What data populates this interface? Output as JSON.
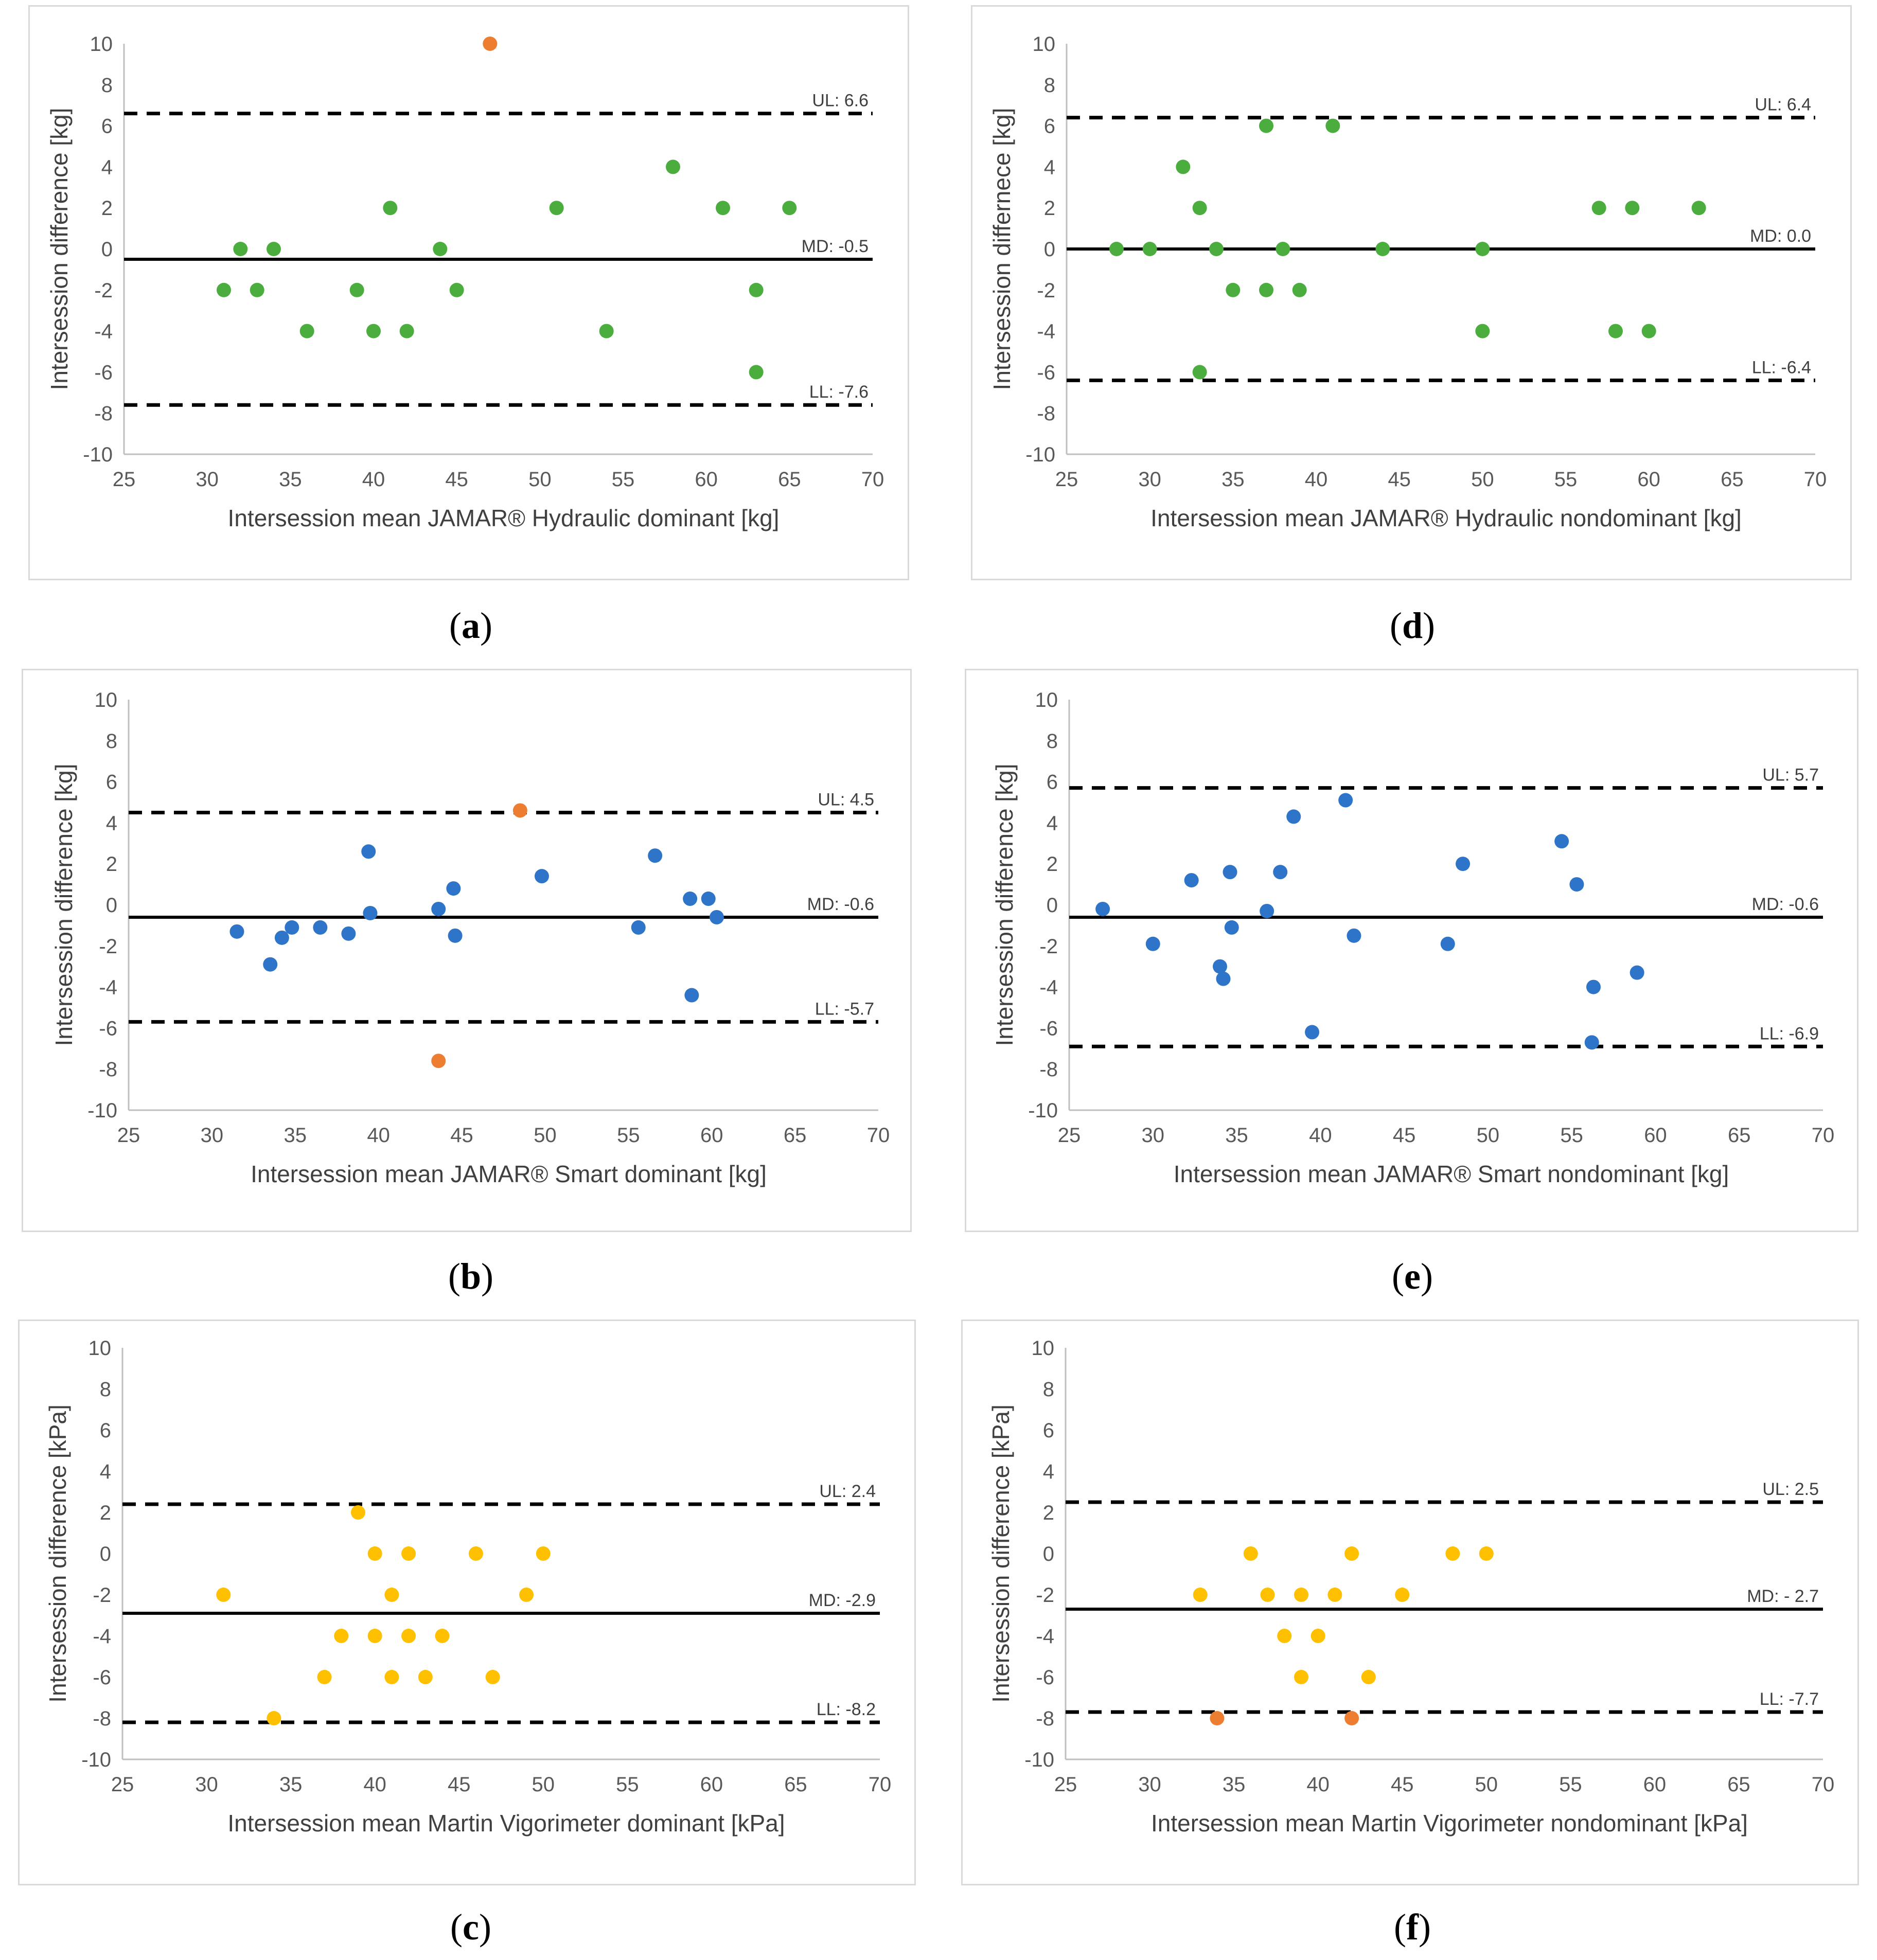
{
  "colors": {
    "green": "#4cad3f",
    "blue": "#2e75c9",
    "orange": "#ed7d31",
    "yellow": "#ffc000",
    "line": "#000000",
    "axis": "#bfbfbf"
  },
  "chart_data": [
    {
      "id": "a",
      "label": "a",
      "type": "scatter",
      "xlabel": "Intersession mean JAMAR® Hydraulic dominant [kg]",
      "ylabel": "Intersession difference [kg]",
      "xlim": [
        25,
        70
      ],
      "ylim": [
        -10,
        10
      ],
      "xticks": [
        25,
        30,
        35,
        40,
        45,
        50,
        55,
        60,
        65,
        70
      ],
      "yticks": [
        -10,
        -8,
        -6,
        -4,
        -2,
        0,
        2,
        4,
        6,
        8,
        10
      ],
      "lines": [
        {
          "kind": "upper",
          "value": 6.6,
          "label": "UL: 6.6"
        },
        {
          "kind": "mean",
          "value": -0.5,
          "label": "MD: -0.5"
        },
        {
          "kind": "lower",
          "value": -7.6,
          "label": "LL: -7.6"
        }
      ],
      "points": [
        {
          "x": 31,
          "y": -2,
          "c": "green"
        },
        {
          "x": 32,
          "y": 0,
          "c": "green"
        },
        {
          "x": 33,
          "y": -2,
          "c": "green"
        },
        {
          "x": 34,
          "y": 0,
          "c": "green"
        },
        {
          "x": 36,
          "y": -4,
          "c": "green"
        },
        {
          "x": 39,
          "y": -2,
          "c": "green"
        },
        {
          "x": 40,
          "y": -4,
          "c": "green"
        },
        {
          "x": 41,
          "y": 2,
          "c": "green"
        },
        {
          "x": 42,
          "y": -4,
          "c": "green"
        },
        {
          "x": 44,
          "y": 0,
          "c": "green"
        },
        {
          "x": 45,
          "y": -2,
          "c": "green"
        },
        {
          "x": 47,
          "y": 10,
          "c": "orange"
        },
        {
          "x": 51,
          "y": 2,
          "c": "green"
        },
        {
          "x": 54,
          "y": -4,
          "c": "green"
        },
        {
          "x": 58,
          "y": 4,
          "c": "green"
        },
        {
          "x": 61,
          "y": 2,
          "c": "green"
        },
        {
          "x": 63,
          "y": -2,
          "c": "green"
        },
        {
          "x": 63,
          "y": -6,
          "c": "green"
        },
        {
          "x": 65,
          "y": 2,
          "c": "green"
        }
      ]
    },
    {
      "id": "d",
      "label": "d",
      "type": "scatter",
      "xlabel": "Intersession mean JAMAR® Hydraulic nondominant [kg]",
      "ylabel": "Intersession differnece [kg]",
      "xlim": [
        25,
        70
      ],
      "ylim": [
        -10,
        10
      ],
      "xticks": [
        25,
        30,
        35,
        40,
        45,
        50,
        55,
        60,
        65,
        70
      ],
      "yticks": [
        -10,
        -8,
        -6,
        -4,
        -2,
        0,
        2,
        4,
        6,
        8,
        10
      ],
      "lines": [
        {
          "kind": "upper",
          "value": 6.4,
          "label": "UL: 6.4"
        },
        {
          "kind": "mean",
          "value": 0.0,
          "label": "MD: 0.0"
        },
        {
          "kind": "lower",
          "value": -6.4,
          "label": "LL: -6.4"
        }
      ],
      "points": [
        {
          "x": 28,
          "y": 0,
          "c": "green"
        },
        {
          "x": 30,
          "y": 0,
          "c": "green"
        },
        {
          "x": 32,
          "y": 4,
          "c": "green"
        },
        {
          "x": 33,
          "y": 2,
          "c": "green"
        },
        {
          "x": 33,
          "y": -6,
          "c": "green"
        },
        {
          "x": 34,
          "y": 0,
          "c": "green"
        },
        {
          "x": 35,
          "y": -2,
          "c": "green"
        },
        {
          "x": 37,
          "y": 6,
          "c": "green"
        },
        {
          "x": 37,
          "y": -2,
          "c": "green"
        },
        {
          "x": 38,
          "y": 0,
          "c": "green"
        },
        {
          "x": 39,
          "y": -2,
          "c": "green"
        },
        {
          "x": 41,
          "y": 6,
          "c": "green"
        },
        {
          "x": 44,
          "y": 0,
          "c": "green"
        },
        {
          "x": 50,
          "y": 0,
          "c": "green"
        },
        {
          "x": 50,
          "y": -4,
          "c": "green"
        },
        {
          "x": 57,
          "y": 2,
          "c": "green"
        },
        {
          "x": 58,
          "y": -4,
          "c": "green"
        },
        {
          "x": 59,
          "y": 2,
          "c": "green"
        },
        {
          "x": 60,
          "y": -4,
          "c": "green"
        },
        {
          "x": 63,
          "y": 2,
          "c": "green"
        }
      ]
    },
    {
      "id": "b",
      "label": "b",
      "type": "scatter",
      "xlabel": "Intersession mean JAMAR® Smart dominant [kg]",
      "ylabel": "Intersession difference [kg]",
      "xlim": [
        25,
        70
      ],
      "ylim": [
        -10,
        10
      ],
      "xticks": [
        25,
        30,
        35,
        40,
        45,
        50,
        55,
        60,
        65,
        70
      ],
      "yticks": [
        -10,
        -8,
        -6,
        -4,
        -2,
        0,
        2,
        4,
        6,
        8,
        10
      ],
      "lines": [
        {
          "kind": "upper",
          "value": 4.5,
          "label": "UL: 4.5"
        },
        {
          "kind": "mean",
          "value": -0.6,
          "label": "MD: -0.6"
        },
        {
          "kind": "lower",
          "value": -5.7,
          "label": "LL: -5.7"
        }
      ],
      "points": [
        {
          "x": 31.5,
          "y": -1.3,
          "c": "blue"
        },
        {
          "x": 33.5,
          "y": -2.9,
          "c": "blue"
        },
        {
          "x": 34.2,
          "y": -1.6,
          "c": "blue"
        },
        {
          "x": 34.8,
          "y": -1.1,
          "c": "blue"
        },
        {
          "x": 36.5,
          "y": -1.1,
          "c": "blue"
        },
        {
          "x": 38.2,
          "y": -1.4,
          "c": "blue"
        },
        {
          "x": 39.4,
          "y": 2.6,
          "c": "blue"
        },
        {
          "x": 39.5,
          "y": -0.4,
          "c": "blue"
        },
        {
          "x": 43.6,
          "y": -0.2,
          "c": "blue"
        },
        {
          "x": 43.6,
          "y": -7.6,
          "c": "orange"
        },
        {
          "x": 44.5,
          "y": 0.8,
          "c": "blue"
        },
        {
          "x": 44.6,
          "y": -1.5,
          "c": "blue"
        },
        {
          "x": 48.5,
          "y": 4.6,
          "c": "orange"
        },
        {
          "x": 49.8,
          "y": 1.4,
          "c": "blue"
        },
        {
          "x": 55.6,
          "y": -1.1,
          "c": "blue"
        },
        {
          "x": 56.6,
          "y": 2.4,
          "c": "blue"
        },
        {
          "x": 58.7,
          "y": 0.3,
          "c": "blue"
        },
        {
          "x": 58.8,
          "y": -4.4,
          "c": "blue"
        },
        {
          "x": 59.8,
          "y": 0.3,
          "c": "blue"
        },
        {
          "x": 60.3,
          "y": -0.6,
          "c": "blue"
        }
      ]
    },
    {
      "id": "e",
      "label": "e",
      "type": "scatter",
      "xlabel": "Intersession mean JAMAR® Smart nondominant [kg]",
      "ylabel": "Intersession difference [kg]",
      "xlim": [
        25,
        70
      ],
      "ylim": [
        -10,
        10
      ],
      "xticks": [
        25,
        30,
        35,
        40,
        45,
        50,
        55,
        60,
        65,
        70
      ],
      "yticks": [
        -10,
        -8,
        -6,
        -4,
        -2,
        0,
        2,
        4,
        6,
        8,
        10
      ],
      "lines": [
        {
          "kind": "upper",
          "value": 5.7,
          "label": "UL: 5.7"
        },
        {
          "kind": "mean",
          "value": -0.6,
          "label": "MD: -0.6"
        },
        {
          "kind": "lower",
          "value": -6.9,
          "label": "LL: -6.9"
        }
      ],
      "points": [
        {
          "x": 27,
          "y": -0.2,
          "c": "blue"
        },
        {
          "x": 30,
          "y": -1.9,
          "c": "blue"
        },
        {
          "x": 32.3,
          "y": 1.2,
          "c": "blue"
        },
        {
          "x": 34,
          "y": -3,
          "c": "blue"
        },
        {
          "x": 34.2,
          "y": -3.6,
          "c": "blue"
        },
        {
          "x": 34.6,
          "y": 1.6,
          "c": "blue"
        },
        {
          "x": 34.7,
          "y": -1.1,
          "c": "blue"
        },
        {
          "x": 36.8,
          "y": -0.3,
          "c": "blue"
        },
        {
          "x": 37.6,
          "y": 1.6,
          "c": "blue"
        },
        {
          "x": 38.4,
          "y": 4.3,
          "c": "blue"
        },
        {
          "x": 39.5,
          "y": -6.2,
          "c": "blue"
        },
        {
          "x": 41.5,
          "y": 5.1,
          "c": "blue"
        },
        {
          "x": 42,
          "y": -1.5,
          "c": "blue"
        },
        {
          "x": 47.6,
          "y": -1.9,
          "c": "blue"
        },
        {
          "x": 48.5,
          "y": 2,
          "c": "blue"
        },
        {
          "x": 54.4,
          "y": 3.1,
          "c": "blue"
        },
        {
          "x": 55.3,
          "y": 1,
          "c": "blue"
        },
        {
          "x": 56.2,
          "y": -6.7,
          "c": "blue"
        },
        {
          "x": 56.3,
          "y": -4,
          "c": "blue"
        },
        {
          "x": 58.9,
          "y": -3.3,
          "c": "blue"
        }
      ]
    },
    {
      "id": "c",
      "label": "c",
      "type": "scatter",
      "xlabel": "Intersession mean Martin Vigorimeter dominant [kPa]",
      "ylabel": "Intersession difference [kPa]",
      "xlim": [
        25,
        70
      ],
      "ylim": [
        -10,
        10
      ],
      "xticks": [
        25,
        30,
        35,
        40,
        45,
        50,
        55,
        60,
        65,
        70
      ],
      "yticks": [
        -10,
        -8,
        -6,
        -4,
        -2,
        0,
        2,
        4,
        6,
        8,
        10
      ],
      "lines": [
        {
          "kind": "upper",
          "value": 2.4,
          "label": "UL: 2.4"
        },
        {
          "kind": "mean",
          "value": -2.9,
          "label": "MD: -2.9"
        },
        {
          "kind": "lower",
          "value": -8.2,
          "label": "LL: -8.2"
        }
      ],
      "points": [
        {
          "x": 31,
          "y": -2,
          "c": "yellow"
        },
        {
          "x": 34,
          "y": -8,
          "c": "yellow"
        },
        {
          "x": 37,
          "y": -6,
          "c": "yellow"
        },
        {
          "x": 38,
          "y": -4,
          "c": "yellow"
        },
        {
          "x": 39,
          "y": 2,
          "c": "yellow"
        },
        {
          "x": 40,
          "y": 0,
          "c": "yellow"
        },
        {
          "x": 40,
          "y": -4,
          "c": "yellow"
        },
        {
          "x": 41,
          "y": -2,
          "c": "yellow"
        },
        {
          "x": 41,
          "y": -6,
          "c": "yellow"
        },
        {
          "x": 42,
          "y": 0,
          "c": "yellow"
        },
        {
          "x": 42,
          "y": -4,
          "c": "yellow"
        },
        {
          "x": 43,
          "y": -6,
          "c": "yellow"
        },
        {
          "x": 44,
          "y": -4,
          "c": "yellow"
        },
        {
          "x": 46,
          "y": 0,
          "c": "yellow"
        },
        {
          "x": 47,
          "y": -6,
          "c": "yellow"
        },
        {
          "x": 49,
          "y": -2,
          "c": "yellow"
        },
        {
          "x": 50,
          "y": 0,
          "c": "yellow"
        }
      ]
    },
    {
      "id": "f",
      "label": "f",
      "type": "scatter",
      "xlabel": "Intersession mean Martin Vigorimeter nondominant [kPa]",
      "ylabel": "Intersession difference [kPa]",
      "xlim": [
        25,
        70
      ],
      "ylim": [
        -10,
        10
      ],
      "xticks": [
        25,
        30,
        35,
        40,
        45,
        50,
        55,
        60,
        65,
        70
      ],
      "yticks": [
        -10,
        -8,
        -6,
        -4,
        -2,
        0,
        2,
        4,
        6,
        8,
        10
      ],
      "lines": [
        {
          "kind": "upper",
          "value": 2.5,
          "label": "UL: 2.5"
        },
        {
          "kind": "mean",
          "value": -2.7,
          "label": "MD: - 2.7"
        },
        {
          "kind": "lower",
          "value": -7.7,
          "label": "LL: -7.7"
        }
      ],
      "points": [
        {
          "x": 33,
          "y": -2,
          "c": "yellow"
        },
        {
          "x": 34,
          "y": -8,
          "c": "orange"
        },
        {
          "x": 36,
          "y": 0,
          "c": "yellow"
        },
        {
          "x": 37,
          "y": -2,
          "c": "yellow"
        },
        {
          "x": 38,
          "y": -4,
          "c": "yellow"
        },
        {
          "x": 39,
          "y": -2,
          "c": "yellow"
        },
        {
          "x": 39,
          "y": -6,
          "c": "yellow"
        },
        {
          "x": 40,
          "y": -4,
          "c": "yellow"
        },
        {
          "x": 41,
          "y": -2,
          "c": "yellow"
        },
        {
          "x": 42,
          "y": 0,
          "c": "yellow"
        },
        {
          "x": 42,
          "y": -8,
          "c": "orange"
        },
        {
          "x": 43,
          "y": -6,
          "c": "yellow"
        },
        {
          "x": 45,
          "y": -2,
          "c": "yellow"
        },
        {
          "x": 48,
          "y": 0,
          "c": "yellow"
        },
        {
          "x": 50,
          "y": 0,
          "c": "yellow"
        }
      ]
    }
  ]
}
